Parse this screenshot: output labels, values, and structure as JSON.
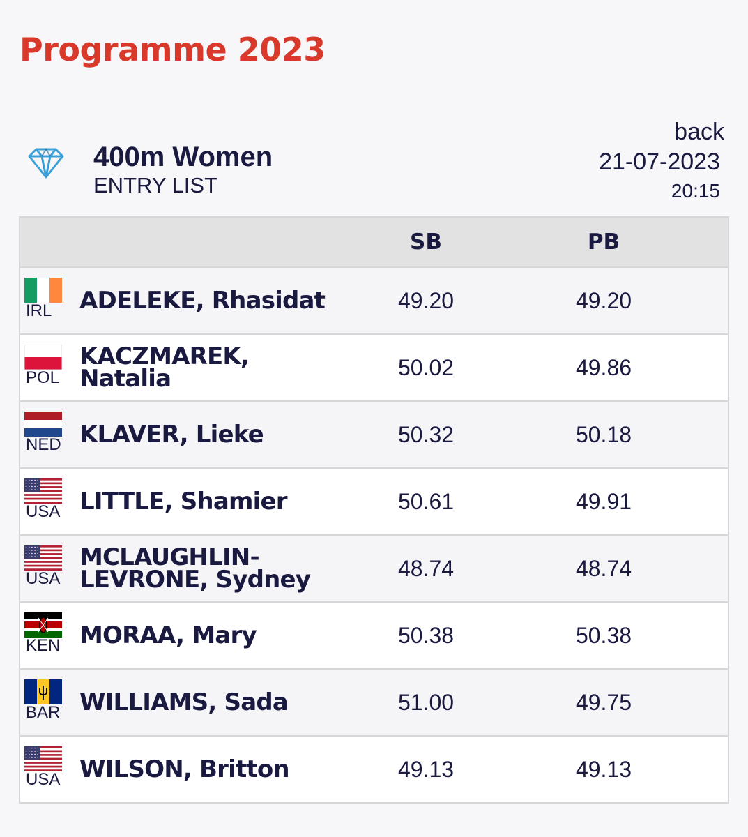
{
  "header": {
    "title": "Programme 2023",
    "back_label": "back"
  },
  "event": {
    "icon": "diamond-icon",
    "name": "400m Women",
    "subtitle": "ENTRY LIST",
    "date": "21-07-2023",
    "time": "20:15"
  },
  "table": {
    "columns": [
      "SB",
      "PB"
    ],
    "rows": [
      {
        "country": "IRL",
        "name": "ADELEKE, Rhasidat",
        "sb": "49.20",
        "pb": "49.20"
      },
      {
        "country": "POL",
        "name": "KACZMAREK, Natalia",
        "sb": "50.02",
        "pb": "49.86"
      },
      {
        "country": "NED",
        "name": "KLAVER, Lieke",
        "sb": "50.32",
        "pb": "50.18"
      },
      {
        "country": "USA",
        "name": "LITTLE, Shamier",
        "sb": "50.61",
        "pb": "49.91"
      },
      {
        "country": "USA",
        "name": "MCLAUGHLIN-LEVRONE, Sydney",
        "sb": "48.74",
        "pb": "48.74"
      },
      {
        "country": "KEN",
        "name": "MORAA, Mary",
        "sb": "50.38",
        "pb": "50.38"
      },
      {
        "country": "BAR",
        "name": "WILLIAMS, Sada",
        "sb": "51.00",
        "pb": "49.75"
      },
      {
        "country": "USA",
        "name": "WILSON, Britton",
        "sb": "49.13",
        "pb": "49.13"
      }
    ]
  },
  "colors": {
    "title_red": "#d8392b",
    "text_navy": "#1a1a40",
    "icon_blue": "#3a9fd6"
  }
}
